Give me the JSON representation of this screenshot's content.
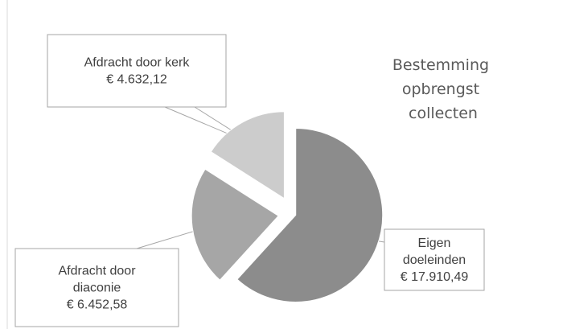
{
  "chart_data": {
    "type": "pie",
    "title": [
      "Bestemming",
      "opbrengst",
      "collecten"
    ],
    "exploded": true,
    "slices": [
      {
        "name": "Eigen doeleinden",
        "label_lines": [
          "Eigen",
          "doeleinden",
          "€ 17.910,49"
        ],
        "value": 17910.49,
        "color": "#8c8c8c"
      },
      {
        "name": "Afdracht door diaconie",
        "label_lines": [
          "Afdracht door",
          "diaconie",
          "€ 6.452,58"
        ],
        "value": 6452.58,
        "color": "#a6a6a6"
      },
      {
        "name": "Afdracht door kerk",
        "label_lines": [
          "Afdracht door kerk",
          "€ 4.632,12"
        ],
        "value": 4632.12,
        "color": "#cccccc"
      }
    ]
  }
}
